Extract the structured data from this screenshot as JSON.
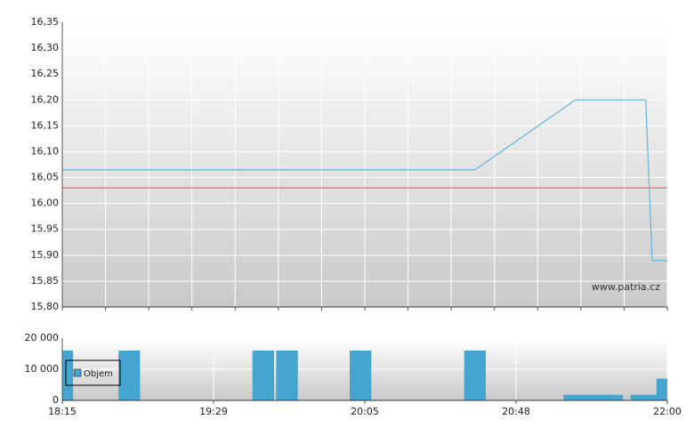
{
  "chart_data": [
    {
      "type": "line",
      "xlim": [
        0,
        28
      ],
      "ylim": [
        15.8,
        16.35
      ],
      "yticks": [
        {
          "value": 15.8,
          "label": "15,80"
        },
        {
          "value": 15.85,
          "label": "15,85"
        },
        {
          "value": 15.9,
          "label": "15,90"
        },
        {
          "value": 15.95,
          "label": "15,95"
        },
        {
          "value": 16.0,
          "label": "16,00"
        },
        {
          "value": 16.05,
          "label": "16,05"
        },
        {
          "value": 16.1,
          "label": "16,10"
        },
        {
          "value": 16.15,
          "label": "16,15"
        },
        {
          "value": 16.2,
          "label": "16,20"
        },
        {
          "value": 16.25,
          "label": "16,25"
        },
        {
          "value": 16.3,
          "label": "16,30"
        },
        {
          "value": 16.35,
          "label": "16,35"
        }
      ],
      "grid": true,
      "series": [
        {
          "color": "#6cb8d8",
          "x": [
            0,
            19.1,
            23.75,
            27,
            27.3,
            28
          ],
          "values": [
            16.065,
            16.065,
            16.2,
            16.2,
            15.89,
            15.89
          ]
        }
      ],
      "reference_line": {
        "value": 16.03,
        "color": "#e0505a"
      },
      "watermark": "www.patria.cz"
    },
    {
      "type": "bar",
      "xlim": [
        0,
        28
      ],
      "xticks": [
        {
          "value": 0,
          "label": "18:15"
        },
        {
          "value": 7,
          "label": "19:29"
        },
        {
          "value": 14,
          "label": "20:05"
        },
        {
          "value": 21,
          "label": "20:48"
        },
        {
          "value": 28,
          "label": "22:00"
        }
      ],
      "ylim": [
        0,
        20000
      ],
      "yticks": [
        0,
        {
          "value": 10000,
          "label": "10 000"
        },
        {
          "value": 20000,
          "label": "20 000"
        }
      ],
      "grid": true,
      "series": [
        {
          "name": "Objem",
          "color": "#45a5cf",
          "x": [
            0,
            3.1,
            9.3,
            10.4,
            13.8,
            19.1,
            23.7,
            24.7,
            25.45,
            26.8,
            27.2,
            28
          ],
          "values": [
            16000,
            16000,
            16000,
            16000,
            16000,
            16000,
            1800,
            1800,
            1800,
            1800,
            1800,
            7000
          ]
        }
      ]
    }
  ]
}
